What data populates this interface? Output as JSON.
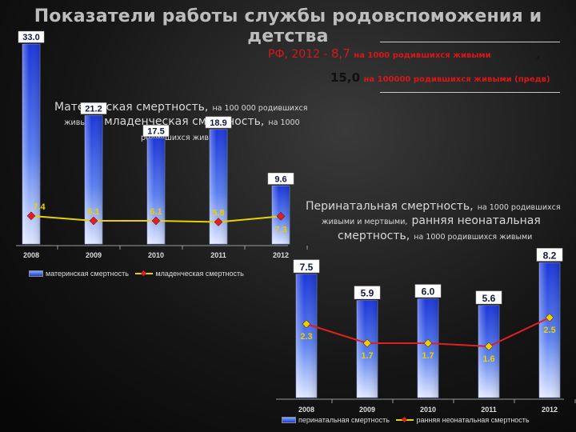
{
  "header": {
    "title": "Показатели работы службы родовспоможения и детства",
    "rf_prefix": "РФ, 2012 - ",
    "infant_value": "8,7",
    "infant_unit": "на 1000 родившихся живыми",
    "infant_extra": ",",
    "maternal_value": "15,0",
    "maternal_unit": "на 100000 родившихся живыми (предв)"
  },
  "chart_data": [
    {
      "type": "bar",
      "caption_big_1": "Материнская смертность,",
      "caption_small_1": "на 100 000 родившихся",
      "caption_small_2": "живыми",
      "caption_big_2": ", младенческая смертность,",
      "caption_small_3": "на 1000",
      "caption_small_4": "родившихся живыми",
      "categories": [
        "2008",
        "2009",
        "2010",
        "2011",
        "2012"
      ],
      "series": [
        {
          "name": "материнская смертность",
          "kind": "bar",
          "values": [
            33.0,
            21.2,
            17.5,
            18.9,
            9.6
          ],
          "labels": [
            "33.0",
            "21.2",
            "17.5",
            "18.9",
            "9.6"
          ],
          "color": "#2742e0"
        },
        {
          "name": "младенческая смертность",
          "kind": "line",
          "values": [
            7.4,
            6.1,
            6.1,
            5.8,
            7.3
          ],
          "labels": [
            "7.4",
            "6.1",
            "6.1",
            "5.8",
            "7.3"
          ],
          "line_color": "#e6d200",
          "marker_color": "#e02020"
        }
      ],
      "ylim": [
        0,
        35
      ],
      "grid": false,
      "legend_position": "bottom"
    },
    {
      "type": "bar",
      "caption_big_1": "Перинатальная смертность,",
      "caption_small_1": "на 1000 родившихся",
      "caption_small_2": "живыми и мертвыми,",
      "caption_big_2": "ранняя неонатальная",
      "caption_big_3": "смертность,",
      "caption_small_3": "на 1000 родившихся живыми",
      "categories": [
        "2008",
        "2009",
        "2010",
        "2011",
        "2012"
      ],
      "series": [
        {
          "name": "перинатальная смертность",
          "kind": "bar",
          "values": [
            7.5,
            5.9,
            6.0,
            5.6,
            8.2
          ],
          "labels": [
            "7.5",
            "5.9",
            "6.0",
            "5.6",
            "8.2"
          ],
          "color": "#2742e0"
        },
        {
          "name": "ранняя неонатальная смертность",
          "kind": "line",
          "values": [
            2.3,
            1.7,
            1.7,
            1.6,
            2.5
          ],
          "labels": [
            "2.3",
            "1.7",
            "1.7",
            "1.6",
            "2.5"
          ],
          "line_color": "#e02020",
          "marker_color": "#e6d200"
        }
      ],
      "ylim": [
        0,
        9
      ],
      "grid": false,
      "legend_position": "bottom"
    }
  ]
}
